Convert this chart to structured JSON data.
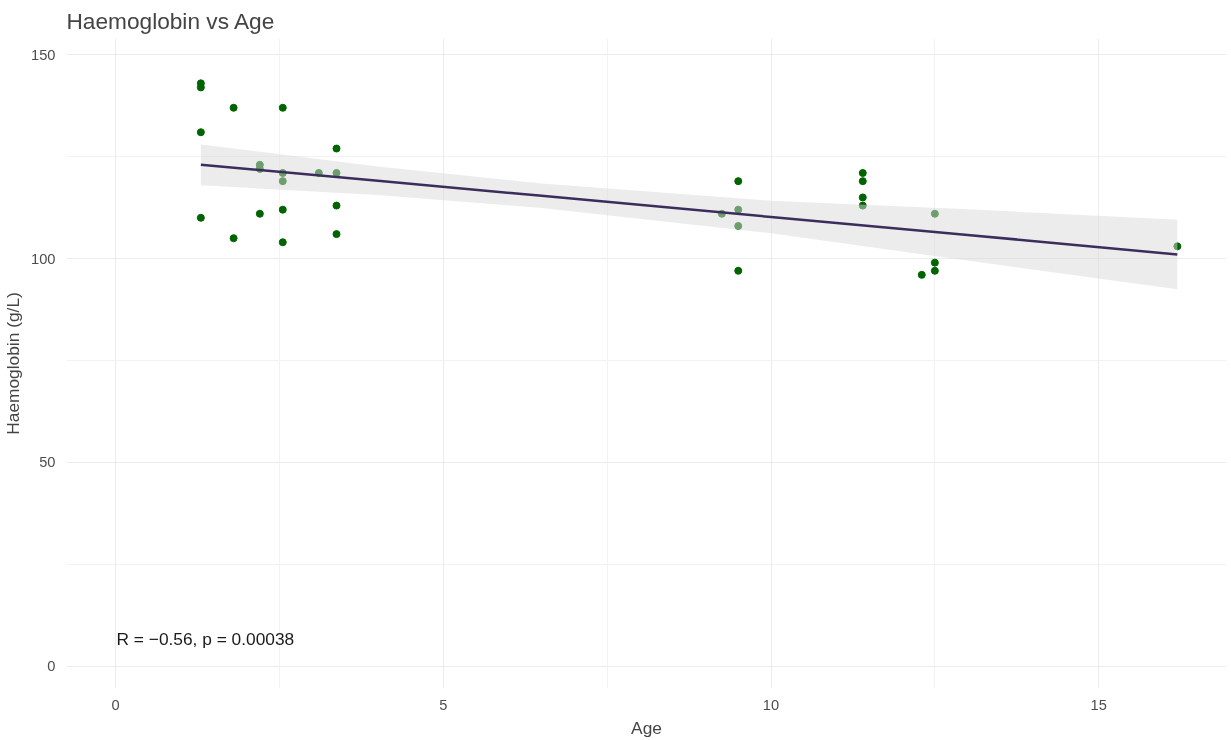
{
  "chart_data": {
    "type": "scatter",
    "title": "Haemoglobin vs Age",
    "xlabel": "Age",
    "ylabel": "Haemoglobin (g/L)",
    "xlim": [
      -0.75,
      16.95
    ],
    "ylim": [
      -5.5,
      154
    ],
    "xticks": [
      0,
      5,
      10,
      15
    ],
    "yticks": [
      0,
      50,
      100,
      150
    ],
    "grid": true,
    "annotations": [
      "R = −0.56, p = 0.00038"
    ],
    "series": [
      {
        "marker": "circle",
        "color": "#006400",
        "x": [
          1.3,
          1.3,
          1.3,
          1.3,
          1.8,
          1.8,
          2.2,
          2.2,
          2.2,
          2.55,
          2.55,
          2.55,
          2.55,
          2.55,
          3.1,
          3.37,
          3.37,
          3.37,
          3.37,
          9.25,
          9.5,
          9.5,
          9.5,
          9.5,
          11.4,
          11.4,
          11.4,
          11.4,
          12.3,
          12.5,
          12.5,
          12.5,
          16.2
        ],
        "values": [
          143,
          142,
          131,
          110,
          137,
          105,
          123,
          122,
          111,
          137,
          121,
          119,
          112,
          104,
          121,
          127,
          121,
          113,
          106,
          111,
          119,
          112,
          108,
          97,
          121,
          119,
          115,
          113,
          96,
          111,
          99,
          97,
          103
        ]
      },
      {
        "type": "line",
        "marker": "none",
        "color": "#3b2d5c",
        "x": [
          1.3,
          4,
          6.5,
          10,
          13,
          16.2
        ],
        "values": [
          123,
          119.1,
          115.4,
          110.2,
          105.8,
          101
        ],
        "lower": [
          118,
          115.6,
          112.4,
          106.2,
          99.5,
          92.5
        ],
        "upper": [
          128,
          122.6,
          118.4,
          114.2,
          112.1,
          109.5
        ]
      }
    ]
  }
}
